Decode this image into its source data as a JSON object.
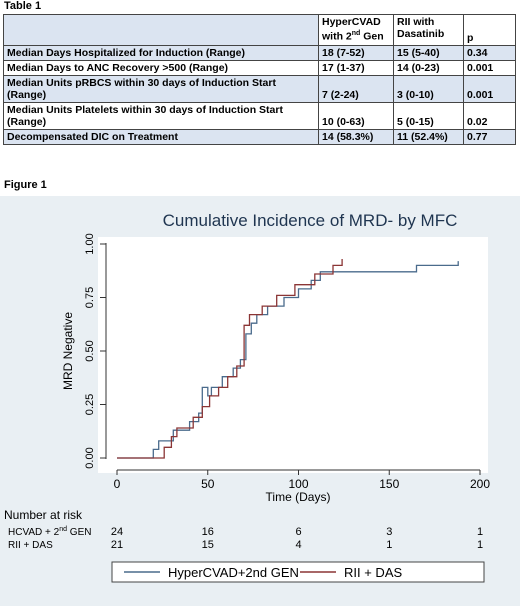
{
  "table": {
    "label": "Table 1",
    "headers": [
      "",
      "HyperCVAD with 2nd Gen",
      "RII with Dasatinib",
      "p"
    ],
    "rows": [
      [
        "Median Days Hospitalized for Induction (Range)",
        "18 (7-52)",
        "15 (5-40)",
        "0.34"
      ],
      [
        "Median Days to ANC Recovery >500 (Range)",
        "17 (1-37)",
        "14 (0-23)",
        "0.001"
      ],
      [
        "Median Units pRBCS within 30 days of Induction Start (Range)",
        "7 (2-24)",
        "3 (0-10)",
        "0.001"
      ],
      [
        "Median Units Platelets within 30 days of Induction Start (Range)",
        "10 (0-63)",
        "5 (0-15)",
        "0.02"
      ],
      [
        "Decompensated DIC on Treatment",
        "14 (58.3%)",
        "11 (52.4%)",
        "0.77"
      ]
    ]
  },
  "figure": {
    "label": "Figure 1"
  },
  "chart_data": {
    "type": "line",
    "title": "Cumulative Incidence of MRD- by MFC",
    "xlabel": "Time (Days)",
    "ylabel": "MRD Negative",
    "xlim": [
      0,
      200
    ],
    "ylim": [
      0,
      1
    ],
    "xticks": [
      "0",
      "50",
      "100",
      "150",
      "200"
    ],
    "yticks": [
      "0.00",
      "0.25",
      "0.50",
      "0.75",
      "1.00"
    ],
    "grid": false,
    "legend_placement": "bottom",
    "series": [
      {
        "name": "HyperCVAD+2nd GEN",
        "color": "#4a6b8c",
        "points": [
          [
            0,
            0
          ],
          [
            20,
            0
          ],
          [
            20,
            0.04
          ],
          [
            23,
            0.04
          ],
          [
            23,
            0.08
          ],
          [
            31,
            0.08
          ],
          [
            31,
            0.13
          ],
          [
            40,
            0.13
          ],
          [
            40,
            0.17
          ],
          [
            45,
            0.17
          ],
          [
            45,
            0.21
          ],
          [
            47,
            0.21
          ],
          [
            47,
            0.33
          ],
          [
            50,
            0.33
          ],
          [
            50,
            0.29
          ],
          [
            52,
            0.29
          ],
          [
            52,
            0.33
          ],
          [
            58,
            0.33
          ],
          [
            58,
            0.38
          ],
          [
            64,
            0.38
          ],
          [
            64,
            0.42
          ],
          [
            68,
            0.42
          ],
          [
            68,
            0.46
          ],
          [
            71,
            0.46
          ],
          [
            71,
            0.58
          ],
          [
            74,
            0.58
          ],
          [
            74,
            0.63
          ],
          [
            77,
            0.63
          ],
          [
            77,
            0.67
          ],
          [
            83,
            0.67
          ],
          [
            83,
            0.71
          ],
          [
            92,
            0.71
          ],
          [
            92,
            0.75
          ],
          [
            100,
            0.75
          ],
          [
            100,
            0.79
          ],
          [
            107,
            0.79
          ],
          [
            107,
            0.83
          ],
          [
            112,
            0.83
          ],
          [
            112,
            0.87
          ],
          [
            124,
            0.87
          ],
          [
            124,
            0.87
          ],
          [
            165,
            0.87
          ],
          [
            165,
            0.9
          ],
          [
            188,
            0.9
          ],
          [
            188,
            0.92
          ]
        ]
      },
      {
        "name": "RII + DAS",
        "color": "#8b3535",
        "points": [
          [
            0,
            0
          ],
          [
            26,
            0
          ],
          [
            26,
            0.05
          ],
          [
            30,
            0.05
          ],
          [
            30,
            0.1
          ],
          [
            33,
            0.1
          ],
          [
            33,
            0.14
          ],
          [
            42,
            0.14
          ],
          [
            42,
            0.19
          ],
          [
            47,
            0.19
          ],
          [
            47,
            0.24
          ],
          [
            51,
            0.24
          ],
          [
            51,
            0.29
          ],
          [
            56,
            0.29
          ],
          [
            56,
            0.33
          ],
          [
            61,
            0.33
          ],
          [
            61,
            0.38
          ],
          [
            66,
            0.38
          ],
          [
            66,
            0.43
          ],
          [
            70,
            0.43
          ],
          [
            70,
            0.62
          ],
          [
            73,
            0.62
          ],
          [
            73,
            0.67
          ],
          [
            80,
            0.67
          ],
          [
            80,
            0.71
          ],
          [
            88,
            0.71
          ],
          [
            88,
            0.76
          ],
          [
            98,
            0.76
          ],
          [
            98,
            0.81
          ],
          [
            109,
            0.81
          ],
          [
            109,
            0.86
          ],
          [
            119,
            0.86
          ],
          [
            119,
            0.9
          ],
          [
            124,
            0.9
          ],
          [
            124,
            0.93
          ]
        ]
      }
    ],
    "risk_table": {
      "title": "Number at risk",
      "x": [
        0,
        50,
        100,
        150,
        200
      ],
      "rows": [
        {
          "label": "HCVAD + 2nd GEN",
          "values": [
            "24",
            "16",
            "6",
            "3",
            "1"
          ]
        },
        {
          "label": "RII + DAS",
          "values": [
            "21",
            "15",
            "4",
            "1",
            "1"
          ]
        }
      ]
    }
  }
}
